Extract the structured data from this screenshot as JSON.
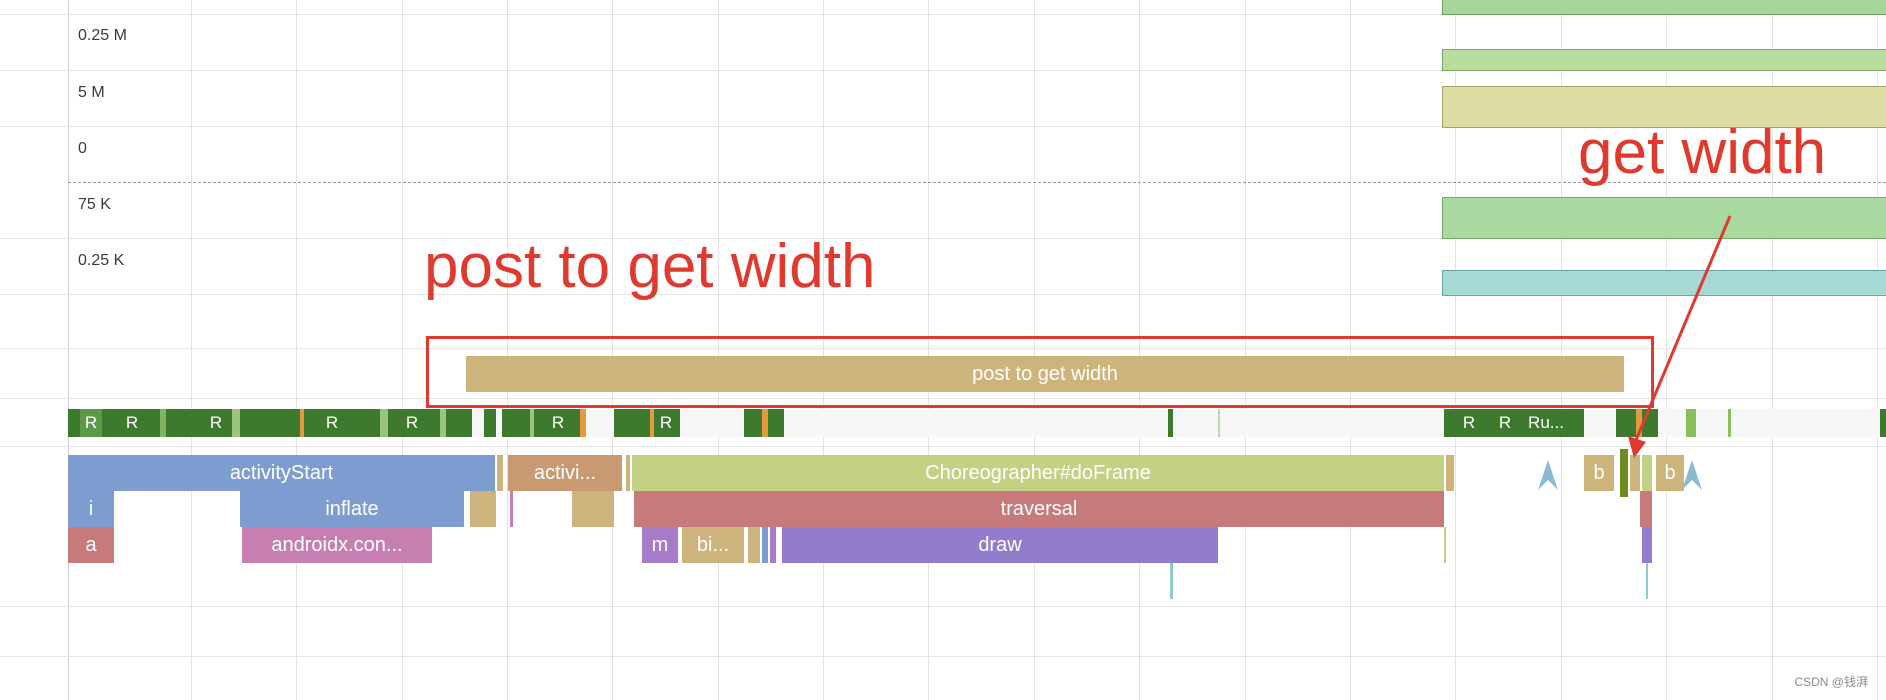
{
  "axis_labels": [
    "0.25 M",
    "5 M",
    "0",
    "75 K",
    "0.25 K"
  ],
  "annotations": {
    "post_to_get_width": "post to get width",
    "get_width": "get width"
  },
  "thread_states": [
    "R",
    "R",
    "R",
    "R",
    "R",
    "R",
    "R",
    "R",
    "R",
    "R",
    "Ru..."
  ],
  "slices": {
    "post_to_get_width": "post to get width",
    "activity_start": "activityStart",
    "activity_truncated": "activi...",
    "choreographer": "Choreographer#doFrame",
    "i": "i",
    "inflate": "inflate",
    "traversal": "traversal",
    "a": "a",
    "androidx": "androidx.con...",
    "m": "m",
    "bi": "bi...",
    "draw": "draw",
    "b1": "b",
    "b2": "b"
  },
  "watermark": "CSDN @钱湃",
  "colors": {
    "annotation_red": "#e03a2f",
    "post_slice": "#cdb37c",
    "activity_start": "#7d9dd0",
    "choreographer": "#c3d184",
    "traversal": "#c67a7c",
    "draw": "#927ccc",
    "androidx": "#c77fb2",
    "state_running": "#3e7a2e"
  }
}
